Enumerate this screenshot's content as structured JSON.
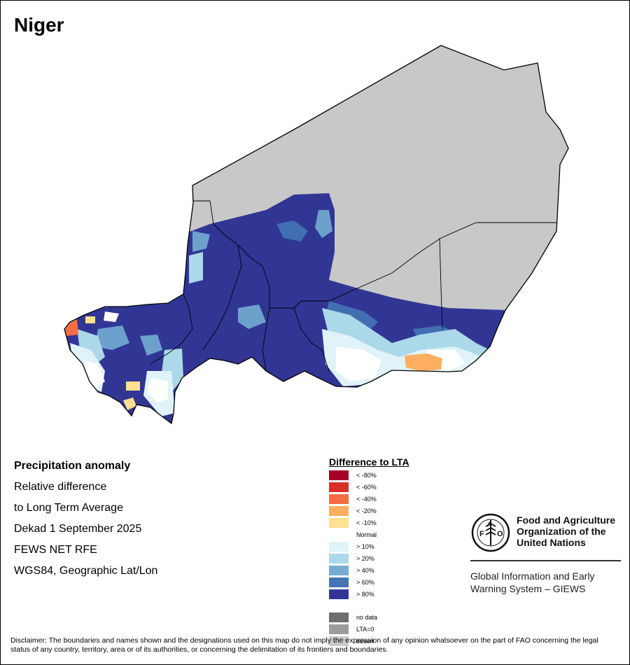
{
  "title": "Niger",
  "info": {
    "heading": "Precipitation anomaly",
    "line1": "Relative difference",
    "line2": "to Long Term Average",
    "line3": "Dekad 1 September 2025",
    "line4": "FEWS NET RFE",
    "line5": "WGS84, Geographic Lat/Lon"
  },
  "legend": {
    "title": "Difference to LTA",
    "items": [
      {
        "label": "< -80%",
        "color": "#a50026"
      },
      {
        "label": "< -60%",
        "color": "#d73027"
      },
      {
        "label": "< -40%",
        "color": "#f46d43"
      },
      {
        "label": "< -20%",
        "color": "#fdae61"
      },
      {
        "label": "< -10%",
        "color": "#fee090"
      },
      {
        "label": "Normal",
        "color": "#ffffff"
      },
      {
        "label": "> 10%",
        "color": "#e0f3f8"
      },
      {
        "label": "> 20%",
        "color": "#abd9e9"
      },
      {
        "label": "> 40%",
        "color": "#74add1"
      },
      {
        "label": "> 60%",
        "color": "#4575b4"
      },
      {
        "label": "> 80%",
        "color": "#313695"
      }
    ],
    "extra": [
      {
        "label": "no data",
        "color": "#6e6e6e"
      },
      {
        "label": "LTA=0",
        "color": "#9c9c9c"
      },
      {
        "label": "desert",
        "color": "#c8c8c8"
      }
    ]
  },
  "fao": {
    "org_line1": "Food and Agriculture",
    "org_line2": "Organization of the",
    "org_line3": "United Nations",
    "logo_text": "FIAT PANIS",
    "system_line1": "Global Information and Early",
    "system_line2": "Warning System – GIEWS"
  },
  "disclaimer": "Disclaimer: The boundaries and names shown and the designations used on this map do not imply the expression of any opinion whatsoever on the part of FAO concerning the legal status of any country, territory, area or of its authorities, or concerning the delimitation of its frontiers and boundaries."
}
